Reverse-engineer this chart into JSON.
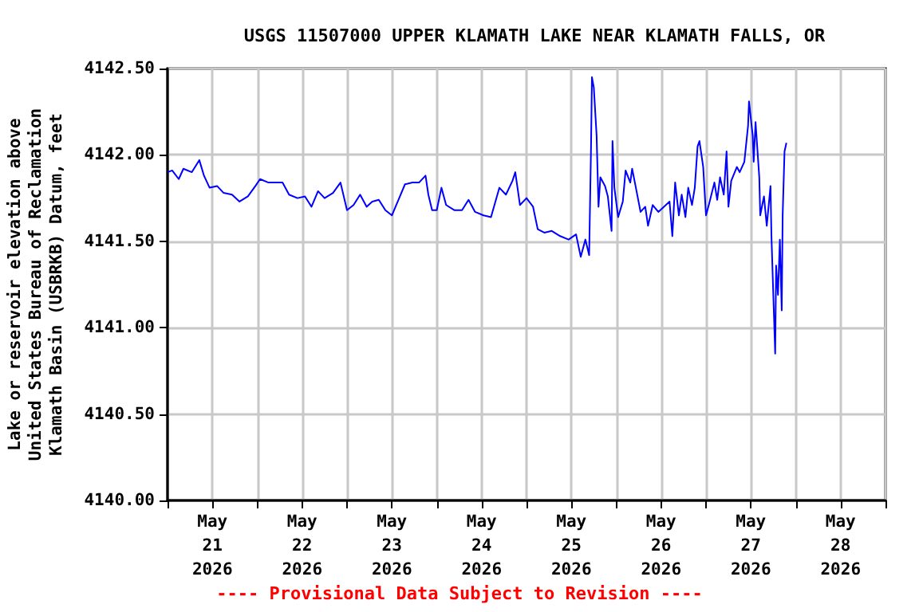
{
  "chart_data": {
    "type": "line",
    "title": "USGS 11507000 UPPER KLAMATH LAKE NEAR KLAMATH FALLS, OR",
    "ylabel": "Lake or reservoir elevation above\nUnited States Bureau of Reclamation\nKlamath Basin (USBRKB) Datum, feet",
    "annotations": [
      "---- Provisional Data Subject to Revision ----"
    ],
    "x": [
      "2026-05-21T00:00",
      "2026-05-21T01:15",
      "2026-05-21T03:00",
      "2026-05-21T04:15",
      "2026-05-21T06:30",
      "2026-05-21T08:30",
      "2026-05-21T09:45",
      "2026-05-21T11:15",
      "2026-05-21T13:15",
      "2026-05-21T15:00",
      "2026-05-21T17:15",
      "2026-05-21T19:15",
      "2026-05-21T21:30",
      "2026-05-21T23:30",
      "2026-05-22T00:45",
      "2026-05-22T03:00",
      "2026-05-22T04:45",
      "2026-05-22T06:45",
      "2026-05-22T08:30",
      "2026-05-22T10:45",
      "2026-05-22T12:45",
      "2026-05-22T14:30",
      "2026-05-22T16:15",
      "2026-05-22T18:00",
      "2026-05-22T20:15",
      "2026-05-22T22:15",
      "2026-05-23T00:00",
      "2026-05-23T01:45",
      "2026-05-23T03:30",
      "2026-05-23T05:15",
      "2026-05-23T06:45",
      "2026-05-23T08:30",
      "2026-05-23T10:15",
      "2026-05-23T12:00",
      "2026-05-23T13:45",
      "2026-05-23T15:30",
      "2026-05-23T17:30",
      "2026-05-23T19:15",
      "2026-05-23T21:00",
      "2026-05-23T21:45",
      "2026-05-23T22:45",
      "2026-05-24T00:00",
      "2026-05-24T01:15",
      "2026-05-24T02:30",
      "2026-05-24T04:45",
      "2026-05-24T06:45",
      "2026-05-24T08:30",
      "2026-05-24T10:15",
      "2026-05-24T12:30",
      "2026-05-24T14:30",
      "2026-05-24T16:45",
      "2026-05-24T18:30",
      "2026-05-24T20:15",
      "2026-05-24T21:00",
      "2026-05-24T22:15",
      "2026-05-25T00:00",
      "2026-05-25T01:45",
      "2026-05-25T03:00",
      "2026-05-25T04:45",
      "2026-05-25T06:45",
      "2026-05-25T09:00",
      "2026-05-25T11:15",
      "2026-05-25T13:15",
      "2026-05-25T14:30",
      "2026-05-25T15:45",
      "2026-05-25T16:45",
      "2026-05-25T17:15",
      "2026-05-25T17:30",
      "2026-05-25T18:00",
      "2026-05-25T18:45",
      "2026-05-25T19:15",
      "2026-05-25T19:45",
      "2026-05-25T21:00",
      "2026-05-25T21:45",
      "2026-05-25T22:45",
      "2026-05-25T23:00",
      "2026-05-25T23:30",
      "2026-05-26T00:30",
      "2026-05-26T01:45",
      "2026-05-26T02:30",
      "2026-05-26T03:45",
      "2026-05-26T04:15",
      "2026-05-26T05:15",
      "2026-05-26T06:30",
      "2026-05-26T07:45",
      "2026-05-26T08:30",
      "2026-05-26T09:45",
      "2026-05-26T11:15",
      "2026-05-26T12:45",
      "2026-05-26T14:15",
      "2026-05-26T15:00",
      "2026-05-26T15:45",
      "2026-05-26T16:45",
      "2026-05-26T17:30",
      "2026-05-26T18:30",
      "2026-05-26T19:15",
      "2026-05-26T20:15",
      "2026-05-26T21:00",
      "2026-05-26T21:45",
      "2026-05-26T22:15",
      "2026-05-26T23:15",
      "2026-05-27T00:00",
      "2026-05-27T00:45",
      "2026-05-27T02:15",
      "2026-05-27T03:00",
      "2026-05-27T03:45",
      "2026-05-27T04:45",
      "2026-05-27T05:30",
      "2026-05-27T06:00",
      "2026-05-27T06:45",
      "2026-05-27T08:15",
      "2026-05-27T09:00",
      "2026-05-27T10:15",
      "2026-05-27T11:15",
      "2026-05-27T11:30",
      "2026-05-27T12:30",
      "2026-05-27T12:45",
      "2026-05-27T13:15",
      "2026-05-27T14:15",
      "2026-05-27T14:30",
      "2026-05-27T15:30",
      "2026-05-27T16:15",
      "2026-05-27T17:15",
      "2026-05-27T17:30",
      "2026-05-27T18:00",
      "2026-05-27T18:30",
      "2026-05-27T18:45",
      "2026-05-27T19:15",
      "2026-05-27T19:45",
      "2026-05-27T20:15",
      "2026-05-27T20:30",
      "2026-05-27T21:00",
      "2026-05-27T21:30"
    ],
    "series": [
      {
        "color": "#0000ff",
        "values": [
          4141.9,
          4141.91,
          4141.86,
          4141.92,
          4141.9,
          4141.97,
          4141.88,
          4141.81,
          4141.82,
          4141.78,
          4141.77,
          4141.73,
          4141.76,
          4141.82,
          4141.86,
          4141.84,
          4141.84,
          4141.84,
          4141.77,
          4141.75,
          4141.76,
          4141.7,
          4141.79,
          4141.75,
          4141.78,
          4141.84,
          4141.68,
          4141.71,
          4141.77,
          4141.7,
          4141.73,
          4141.74,
          4141.68,
          4141.65,
          4141.74,
          4141.83,
          4141.84,
          4141.84,
          4141.88,
          4141.77,
          4141.68,
          4141.68,
          4141.81,
          4141.71,
          4141.68,
          4141.68,
          4141.74,
          4141.67,
          4141.65,
          4141.64,
          4141.81,
          4141.77,
          4141.85,
          4141.9,
          4141.71,
          4141.75,
          4141.7,
          4141.57,
          4141.55,
          4141.56,
          4141.53,
          4141.51,
          4141.54,
          4141.41,
          4141.51,
          4141.42,
          4142.04,
          4142.45,
          4142.39,
          4142.11,
          4141.7,
          4141.87,
          4141.82,
          4141.76,
          4141.56,
          4142.08,
          4141.81,
          4141.64,
          4141.73,
          4141.91,
          4141.84,
          4141.92,
          4141.81,
          4141.67,
          4141.7,
          4141.59,
          4141.71,
          4141.67,
          4141.7,
          4141.73,
          4141.53,
          4141.84,
          4141.65,
          4141.77,
          4141.64,
          4141.81,
          4141.71,
          4141.81,
          4142.05,
          4142.08,
          4141.93,
          4141.65,
          4141.71,
          4141.84,
          4141.74,
          4141.87,
          4141.77,
          4142.02,
          4141.7,
          4141.85,
          4141.93,
          4141.9,
          4141.96,
          4142.17,
          4142.31,
          4142.11,
          4141.96,
          4142.19,
          4141.87,
          4141.65,
          4141.76,
          4141.59,
          4141.82,
          4141.53,
          4141.19,
          4140.85,
          4141.36,
          4141.19,
          4141.51,
          4141.1,
          4141.65,
          4142.02,
          4142.07
        ]
      }
    ],
    "xlim": [
      "2026-05-21",
      "2026-05-29"
    ],
    "xticks": [
      {
        "value": "2026-05-21T00:00",
        "label": null
      },
      {
        "value": "2026-05-21T12:00",
        "label": "May\n21\n2026"
      },
      {
        "value": "2026-05-22T00:00",
        "label": null
      },
      {
        "value": "2026-05-22T12:00",
        "label": "May\n22\n2026"
      },
      {
        "value": "2026-05-23T00:00",
        "label": null
      },
      {
        "value": "2026-05-23T12:00",
        "label": "May\n23\n2026"
      },
      {
        "value": "2026-05-24T00:00",
        "label": null
      },
      {
        "value": "2026-05-24T12:00",
        "label": "May\n24\n2026"
      },
      {
        "value": "2026-05-25T00:00",
        "label": null
      },
      {
        "value": "2026-05-25T12:00",
        "label": "May\n25\n2026"
      },
      {
        "value": "2026-05-26T00:00",
        "label": null
      },
      {
        "value": "2026-05-26T12:00",
        "label": "May\n26\n2026"
      },
      {
        "value": "2026-05-27T00:00",
        "label": null
      },
      {
        "value": "2026-05-27T12:00",
        "label": "May\n27\n2026"
      },
      {
        "value": "2026-05-28T00:00",
        "label": null
      },
      {
        "value": "2026-05-28T12:00",
        "label": "May\n28\n2026"
      },
      {
        "value": "2026-05-29T00:00",
        "label": null
      }
    ],
    "ylim": [
      4140,
      4142.5
    ],
    "yticks": [
      {
        "value": 4140,
        "label": "4140.00"
      },
      {
        "value": 4140.5,
        "label": "4140.50"
      },
      {
        "value": 4141,
        "label": "4141.00"
      },
      {
        "value": 4141.5,
        "label": "4141.50"
      },
      {
        "value": 4142,
        "label": "4142.00"
      },
      {
        "value": 4142.5,
        "label": "4142.50"
      }
    ],
    "grid": true,
    "marker": "none",
    "line_style": "solid"
  }
}
